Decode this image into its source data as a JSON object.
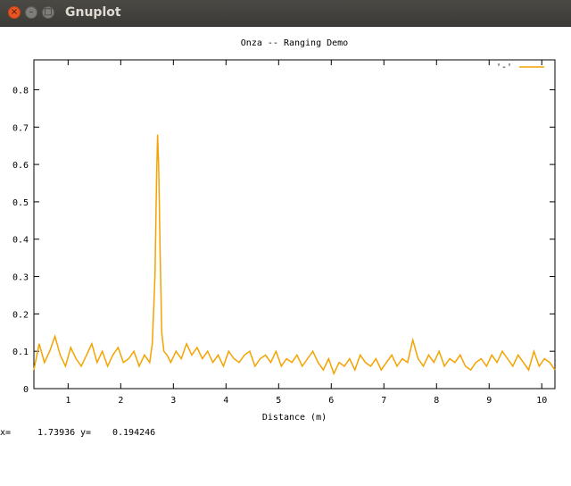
{
  "window": {
    "title": "Gnuplot",
    "close_glyph": "×",
    "minimize_glyph": "–",
    "maximize_glyph": "□"
  },
  "status": {
    "x_label": "x=",
    "x_value": "1.73936",
    "y_label": "y=",
    "y_value": "0.194246"
  },
  "colors": {
    "series": "#f4a300",
    "titlebar": "#3c3b37",
    "close_button": "#e95420"
  },
  "chart_data": {
    "type": "line",
    "title": "Onza -- Ranging Demo",
    "xlabel": "Distance (m)",
    "ylabel": "",
    "xlim": [
      0.35,
      10.25
    ],
    "ylim": [
      0,
      0.88
    ],
    "xticks": [
      1,
      2,
      3,
      4,
      5,
      6,
      7,
      8,
      9,
      10
    ],
    "yticks": [
      0,
      0.1,
      0.2,
      0.3,
      0.4,
      0.5,
      0.6,
      0.7,
      0.8
    ],
    "ytick_labels": [
      "0",
      "0.1",
      "0.2",
      "0.3",
      "0.4",
      "0.5",
      "0.6",
      "0.7",
      "0.8"
    ],
    "grid": false,
    "legend": "top-right",
    "series": [
      {
        "name": "'-'",
        "color": "#f4a300",
        "x": [
          0.35,
          0.45,
          0.55,
          0.65,
          0.75,
          0.85,
          0.95,
          1.05,
          1.15,
          1.25,
          1.35,
          1.45,
          1.55,
          1.65,
          1.75,
          1.85,
          1.95,
          2.05,
          2.15,
          2.25,
          2.35,
          2.45,
          2.55,
          2.6,
          2.65,
          2.68,
          2.7,
          2.72,
          2.75,
          2.78,
          2.82,
          2.88,
          2.95,
          3.05,
          3.15,
          3.25,
          3.35,
          3.45,
          3.55,
          3.65,
          3.75,
          3.85,
          3.95,
          4.05,
          4.15,
          4.25,
          4.35,
          4.45,
          4.55,
          4.65,
          4.75,
          4.85,
          4.95,
          5.05,
          5.15,
          5.25,
          5.35,
          5.45,
          5.55,
          5.65,
          5.75,
          5.85,
          5.95,
          6.05,
          6.15,
          6.25,
          6.35,
          6.45,
          6.55,
          6.65,
          6.75,
          6.85,
          6.95,
          7.05,
          7.15,
          7.25,
          7.35,
          7.45,
          7.55,
          7.65,
          7.75,
          7.85,
          7.95,
          8.05,
          8.15,
          8.25,
          8.35,
          8.45,
          8.55,
          8.65,
          8.75,
          8.85,
          8.95,
          9.05,
          9.15,
          9.25,
          9.35,
          9.45,
          9.55,
          9.65,
          9.75,
          9.85,
          9.95,
          10.05,
          10.15,
          10.25
        ],
        "y": [
          0.05,
          0.12,
          0.07,
          0.1,
          0.14,
          0.09,
          0.06,
          0.11,
          0.08,
          0.06,
          0.09,
          0.12,
          0.07,
          0.1,
          0.06,
          0.09,
          0.11,
          0.07,
          0.08,
          0.1,
          0.06,
          0.09,
          0.07,
          0.12,
          0.3,
          0.55,
          0.68,
          0.6,
          0.35,
          0.15,
          0.1,
          0.09,
          0.07,
          0.1,
          0.08,
          0.12,
          0.09,
          0.11,
          0.08,
          0.1,
          0.07,
          0.09,
          0.06,
          0.1,
          0.08,
          0.07,
          0.09,
          0.1,
          0.06,
          0.08,
          0.09,
          0.07,
          0.1,
          0.06,
          0.08,
          0.07,
          0.09,
          0.06,
          0.08,
          0.1,
          0.07,
          0.05,
          0.08,
          0.04,
          0.07,
          0.06,
          0.08,
          0.05,
          0.09,
          0.07,
          0.06,
          0.08,
          0.05,
          0.07,
          0.09,
          0.06,
          0.08,
          0.07,
          0.13,
          0.08,
          0.06,
          0.09,
          0.07,
          0.1,
          0.06,
          0.08,
          0.07,
          0.09,
          0.06,
          0.05,
          0.07,
          0.08,
          0.06,
          0.09,
          0.07,
          0.1,
          0.08,
          0.06,
          0.09,
          0.07,
          0.05,
          0.1,
          0.06,
          0.08,
          0.07,
          0.05
        ]
      }
    ]
  }
}
